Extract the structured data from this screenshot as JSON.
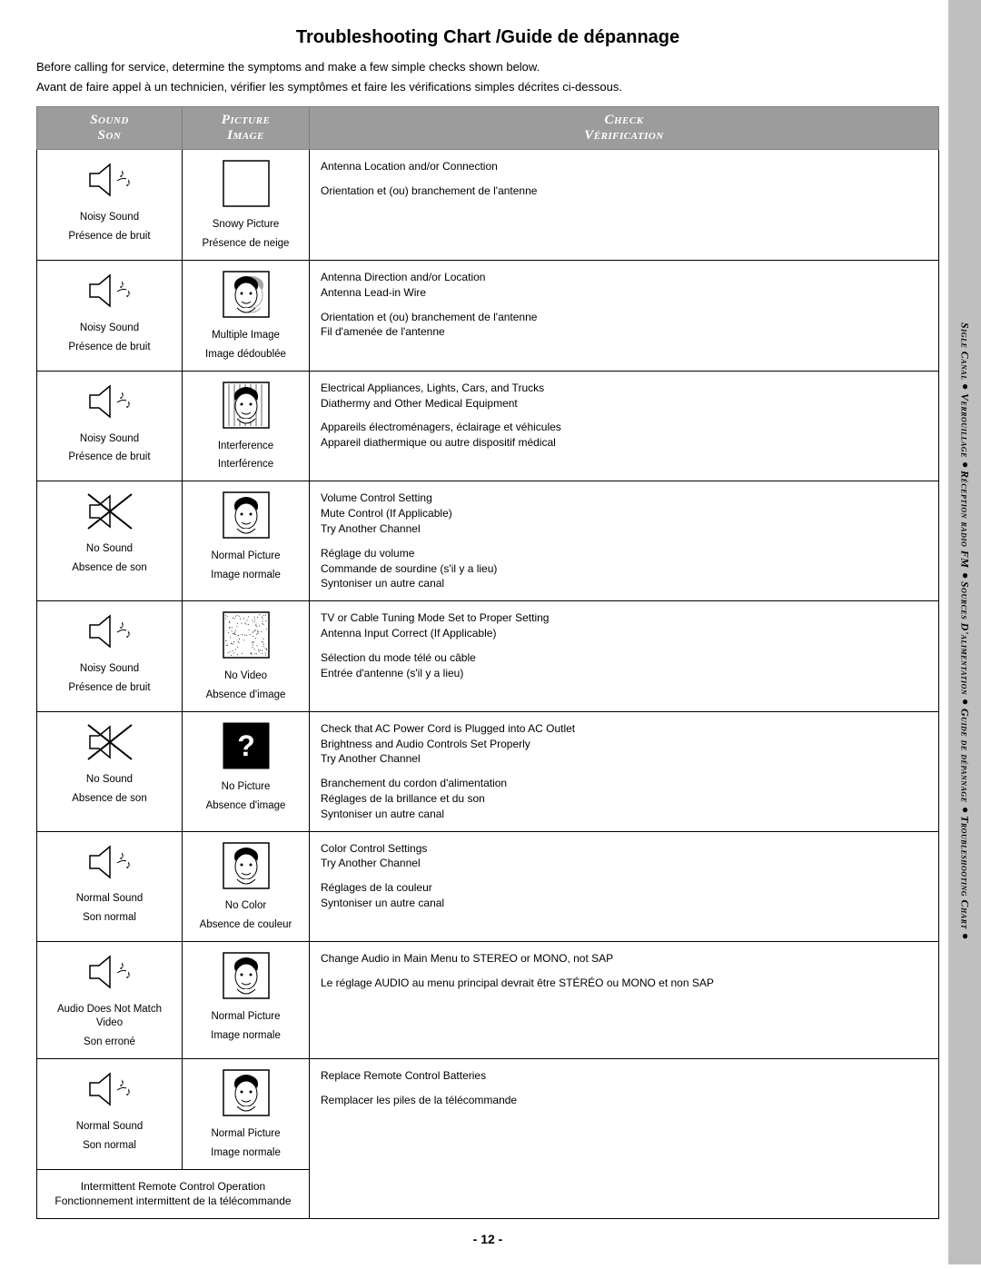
{
  "title": "Troubleshooting Chart /Guide de dépannage",
  "intro_en": "Before calling for service, determine the symptoms and make a few simple checks shown below.",
  "intro_fr": "Avant de faire appel à un technicien, vérifier les symptômes et faire les vérifications simples décrites ci-dessous.",
  "page_number": "- 12 -",
  "side_tab": {
    "segments": [
      "Sigle Canal",
      "Verrouillage",
      "Réception radio FM",
      "Sources D'alimentation",
      "Guide de dépannage",
      "Troubleshooting Chart"
    ]
  },
  "headers": {
    "sound_en": "Sound",
    "sound_fr": "Son",
    "picture_en": "Picture",
    "picture_fr": "Image",
    "check_en": "Check",
    "check_fr": "Vérification"
  },
  "rows": [
    {
      "sound_icon": "noisy",
      "sound_en": "Noisy Sound",
      "sound_fr": "Présence de bruit",
      "pic_icon": "snowy",
      "pic_en": "Snowy Picture",
      "pic_fr": "Présence de neige",
      "check_en": "Antenna Location and/or Connection",
      "check_fr": "Orientation et (ou) branchement de l'antenne"
    },
    {
      "sound_icon": "noisy",
      "sound_en": "Noisy Sound",
      "sound_fr": "Présence de bruit",
      "pic_icon": "multiple",
      "pic_en": "Multiple Image",
      "pic_fr": "Image dédoublée",
      "check_en": "Antenna Direction and/or Location\nAntenna Lead-in Wire",
      "check_fr": "Orientation et (ou) branchement de l'antenne\nFil d'amenée de l'antenne"
    },
    {
      "sound_icon": "noisy",
      "sound_en": "Noisy Sound",
      "sound_fr": "Présence de bruit",
      "pic_icon": "interference",
      "pic_en": "Interference",
      "pic_fr": "Interférence",
      "check_en": "Electrical Appliances, Lights, Cars, and Trucks\nDiathermy and Other Medical Equipment",
      "check_fr": "Appareils électroménagers, éclairage et véhicules\nAppareil diathermique ou autre dispositif médical"
    },
    {
      "sound_icon": "none",
      "sound_en": "No Sound",
      "sound_fr": "Absence de son",
      "pic_icon": "normal",
      "pic_en": "Normal Picture",
      "pic_fr": "Image normale",
      "check_en": "Volume Control Setting\nMute Control (If Applicable)\nTry Another Channel",
      "check_fr": "Réglage du volume\nCommande de sourdine (s'il y a lieu)\nSyntoniser un autre canal"
    },
    {
      "sound_icon": "noisy",
      "sound_en": "Noisy Sound",
      "sound_fr": "Présence de bruit",
      "pic_icon": "novideo",
      "pic_en": "No Video",
      "pic_fr": "Absence d'image",
      "check_en": "TV or Cable Tuning Mode Set to Proper Setting\nAntenna Input Correct (If Applicable)",
      "check_fr": "Sélection du mode télé ou câble\nEntrée d'antenne (s'il y a lieu)"
    },
    {
      "sound_icon": "none",
      "sound_en": "No Sound",
      "sound_fr": "Absence de son",
      "pic_icon": "nopicture",
      "pic_en": "No Picture",
      "pic_fr": "Absence d'image",
      "check_en": "Check that AC Power Cord is Plugged into AC Outlet\nBrightness and Audio Controls Set Properly\nTry Another Channel",
      "check_fr": "Branchement du cordon d'alimentation\nRéglages de la brillance et du son\nSyntoniser un autre canal"
    },
    {
      "sound_icon": "normal",
      "sound_en": "Normal Sound",
      "sound_fr": "Son normal",
      "pic_icon": "nocolor",
      "pic_en": "No Color",
      "pic_fr": "Absence de couleur",
      "check_en": "Color Control Settings\nTry Another Channel",
      "check_fr": "Réglages de la couleur\nSyntoniser un autre canal"
    },
    {
      "sound_icon": "normal",
      "sound_en": "Audio Does Not Match Video",
      "sound_fr": "Son erroné",
      "pic_icon": "normal",
      "pic_en": "Normal Picture",
      "pic_fr": "Image normale",
      "check_en": "Change Audio in Main Menu to STEREO or MONO, not SAP",
      "check_fr": "Le réglage AUDIO au menu principal devrait être STÉRÉO ou MONO et non SAP"
    },
    {
      "sound_icon": "normal",
      "sound_en": "Normal Sound",
      "sound_fr": "Son normal",
      "pic_icon": "normal",
      "pic_en": "Normal Picture",
      "pic_fr": "Image normale",
      "check_en": "Replace Remote Control Batteries",
      "check_fr": "Remplacer les piles de la télécommande"
    }
  ],
  "footer_en": "Intermittent Remote Control Operation",
  "footer_fr": "Fonctionnement intermittent de la télécommande",
  "colors": {
    "header_bg": "#9c9c9c",
    "header_text": "#ffffff",
    "side_tab_bg": "#bfbfbf",
    "border": "#000000",
    "page_bg": "#ffffff"
  }
}
